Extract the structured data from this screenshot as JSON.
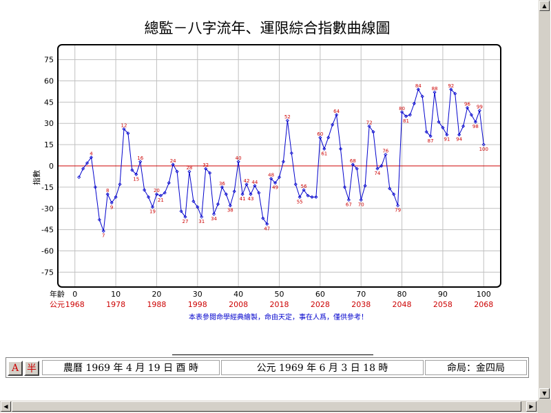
{
  "chart_data": {
    "type": "line",
    "title": "總監－八字流年、運限綜合指數曲線圖",
    "ylabel": "指數",
    "xlabel": "年齡",
    "xlabel2": "公元",
    "ylim": [
      -85,
      85
    ],
    "xlim": [
      -4,
      104
    ],
    "yticks": [
      75,
      60,
      45,
      30,
      15,
      0,
      -15,
      -30,
      -45,
      -60,
      -75
    ],
    "xticks": [
      0,
      10,
      20,
      30,
      40,
      50,
      60,
      70,
      80,
      90,
      100
    ],
    "year_ticks": [
      "1968",
      "1978",
      "1988",
      "1998",
      "2008",
      "2018",
      "2028",
      "2038",
      "2048",
      "2058",
      "2068"
    ],
    "footnote": "本表參閱命學經典繪製，命由天定，事在人爲，僅供參考！",
    "grid": true,
    "zero_line": true,
    "line_color": "#0000cc",
    "marker_color": "#cc0000",
    "zero_line_color": "#cc0000",
    "series": [
      {
        "x": [
          1,
          2,
          3,
          4,
          5,
          6,
          7,
          8,
          9,
          10,
          11,
          12,
          13,
          14,
          15,
          16,
          17,
          18,
          19,
          20,
          21,
          22,
          23,
          24,
          25,
          26,
          27,
          28,
          29,
          30,
          31,
          32,
          33,
          34,
          35,
          36,
          37,
          38,
          39,
          40,
          41,
          42,
          43,
          44,
          45,
          46,
          47,
          48,
          49,
          50,
          51,
          52,
          53,
          54,
          55,
          56,
          57,
          58,
          59,
          60,
          61,
          62,
          63,
          64,
          65,
          66,
          67,
          68,
          69,
          70,
          71,
          72,
          73,
          74,
          75,
          76,
          77,
          78,
          79,
          80,
          81,
          82,
          83,
          84,
          85,
          86,
          87,
          88,
          89,
          90,
          91,
          92,
          93,
          94,
          95,
          96,
          97,
          98,
          99,
          100
        ],
        "y": [
          -8,
          -2,
          2,
          6,
          -15,
          -38,
          -46,
          -20,
          -26,
          -22,
          -13,
          26,
          23,
          -3,
          -6,
          3,
          -17,
          -22,
          -29,
          -20,
          -21,
          -19,
          -12,
          1,
          -4,
          -32,
          -36,
          -4,
          -25,
          -29,
          -36,
          -2,
          -5,
          -34,
          -27,
          -15,
          -20,
          -28,
          -18,
          3,
          -20,
          -13,
          -20,
          -14,
          -19,
          -37,
          -41,
          -9,
          -12,
          -8,
          3,
          32,
          9,
          -13,
          -22,
          -17,
          -21,
          -22,
          -22,
          20,
          12,
          20,
          29,
          36,
          12,
          -15,
          -24,
          1,
          -2,
          -24,
          -14,
          28,
          24,
          -2,
          0,
          8,
          -16,
          -20,
          -28,
          38,
          35,
          36,
          44,
          54,
          49,
          24,
          21,
          52,
          31,
          27,
          22,
          54,
          51,
          22,
          28,
          41,
          36,
          31,
          39,
          15
        ]
      }
    ],
    "point_labels": [
      {
        "x": 4,
        "y": 6,
        "text": "4"
      },
      {
        "x": 7,
        "y": -46,
        "text": "7"
      },
      {
        "x": 8,
        "y": -20,
        "text": "8"
      },
      {
        "x": 9,
        "y": -26,
        "text": "9"
      },
      {
        "x": 12,
        "y": 26,
        "text": "12"
      },
      {
        "x": 15,
        "y": -6,
        "text": "15"
      },
      {
        "x": 16,
        "y": 3,
        "text": "16"
      },
      {
        "x": 19,
        "y": -29,
        "text": "19"
      },
      {
        "x": 20,
        "y": -20,
        "text": "20"
      },
      {
        "x": 21,
        "y": -21,
        "text": "21"
      },
      {
        "x": 24,
        "y": 1,
        "text": "24"
      },
      {
        "x": 27,
        "y": -36,
        "text": "27"
      },
      {
        "x": 28,
        "y": -4,
        "text": "28"
      },
      {
        "x": 31,
        "y": -36,
        "text": "31"
      },
      {
        "x": 32,
        "y": -2,
        "text": "32"
      },
      {
        "x": 34,
        "y": -34,
        "text": "34"
      },
      {
        "x": 36,
        "y": -15,
        "text": "36"
      },
      {
        "x": 38,
        "y": -28,
        "text": "38"
      },
      {
        "x": 40,
        "y": 3,
        "text": "40"
      },
      {
        "x": 41,
        "y": -20,
        "text": "41"
      },
      {
        "x": 42,
        "y": -13,
        "text": "42"
      },
      {
        "x": 43,
        "y": -20,
        "text": "43"
      },
      {
        "x": 44,
        "y": -14,
        "text": "44"
      },
      {
        "x": 47,
        "y": -41,
        "text": "47"
      },
      {
        "x": 48,
        "y": -9,
        "text": "48"
      },
      {
        "x": 49,
        "y": -12,
        "text": "49"
      },
      {
        "x": 52,
        "y": 32,
        "text": "52"
      },
      {
        "x": 55,
        "y": -22,
        "text": "55"
      },
      {
        "x": 56,
        "y": -17,
        "text": "56"
      },
      {
        "x": 60,
        "y": 20,
        "text": "60"
      },
      {
        "x": 61,
        "y": 12,
        "text": "61"
      },
      {
        "x": 64,
        "y": 36,
        "text": "64"
      },
      {
        "x": 67,
        "y": -24,
        "text": "67"
      },
      {
        "x": 68,
        "y": 1,
        "text": "68"
      },
      {
        "x": 70,
        "y": -24,
        "text": "70"
      },
      {
        "x": 72,
        "y": 28,
        "text": "72"
      },
      {
        "x": 74,
        "y": -2,
        "text": "74"
      },
      {
        "x": 76,
        "y": 8,
        "text": "76"
      },
      {
        "x": 79,
        "y": -28,
        "text": "79"
      },
      {
        "x": 80,
        "y": 38,
        "text": "80"
      },
      {
        "x": 81,
        "y": 35,
        "text": "81"
      },
      {
        "x": 84,
        "y": 54,
        "text": "84"
      },
      {
        "x": 87,
        "y": 21,
        "text": "87"
      },
      {
        "x": 88,
        "y": 52,
        "text": "88"
      },
      {
        "x": 91,
        "y": 22,
        "text": "91"
      },
      {
        "x": 92,
        "y": 54,
        "text": "92"
      },
      {
        "x": 94,
        "y": 22,
        "text": "94"
      },
      {
        "x": 96,
        "y": 41,
        "text": "96"
      },
      {
        "x": 98,
        "y": 31,
        "text": "98"
      },
      {
        "x": 99,
        "y": 39,
        "text": "99"
      },
      {
        "x": 100,
        "y": 15,
        "text": "100"
      }
    ]
  },
  "info": {
    "lunar": "農曆 1969 年 4 月 19 日 酉 時",
    "solar": "公元 1969 年 6 月 3 日 18 時",
    "destiny": "命局：金四局"
  },
  "buttons": {
    "a_label": "A",
    "half_label": "半"
  },
  "scroll": {
    "up_glyph": "▲",
    "down_glyph": "▼",
    "left_glyph": "◀",
    "right_glyph": "▶"
  }
}
